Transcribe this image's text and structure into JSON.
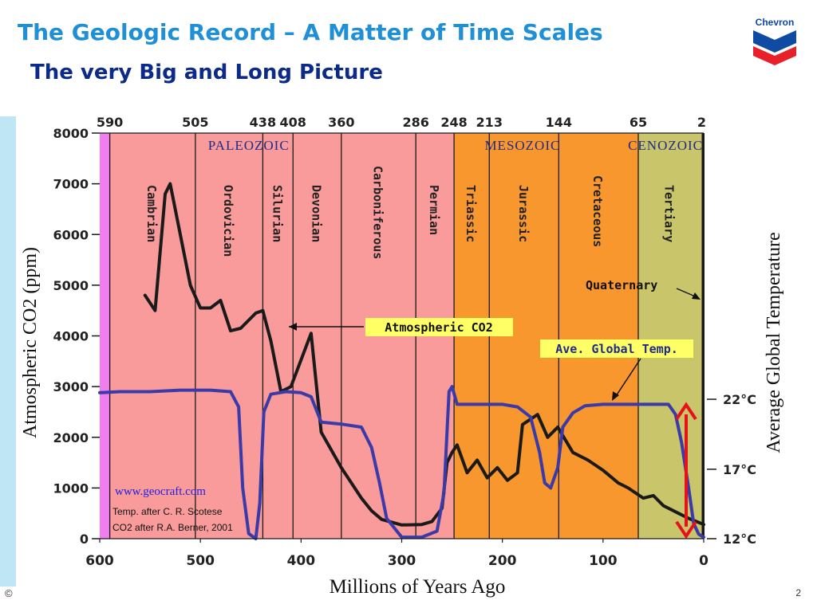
{
  "slide": {
    "title": "The Geologic Record – A Matter of Time Scales",
    "subtitle": "The very Big and Long Picture",
    "copyright": "©",
    "page_number": "2",
    "logo_text": "Chevron"
  },
  "chart_data": {
    "type": "line",
    "xlabel": "Millions of Years Ago",
    "ylabel": "Atmospheric CO2 (ppm)",
    "y2label": "Average Global Temperature",
    "xlim": [
      600,
      0
    ],
    "ylim": [
      0,
      8000
    ],
    "x_ticks": [
      600,
      500,
      400,
      300,
      200,
      100,
      0
    ],
    "y_ticks": [
      0,
      1000,
      2000,
      3000,
      4000,
      5000,
      6000,
      7000,
      8000
    ],
    "top_ticks": [
      "590",
      "505",
      "438",
      "408",
      "360",
      "286",
      "248",
      "213",
      "144",
      "65",
      "2"
    ],
    "temp_ticks": [
      {
        "label": "22°C",
        "ppm": 2750
      },
      {
        "label": "17°C",
        "ppm": 1370
      },
      {
        "label": "12°C",
        "ppm": 0
      }
    ],
    "periods": [
      {
        "name": "",
        "start": 600,
        "end": 590,
        "color": "#f07ef0"
      },
      {
        "name": "Cambrian",
        "start": 590,
        "end": 505,
        "color": "#f99b9b"
      },
      {
        "name": "Ordovician",
        "start": 505,
        "end": 438,
        "color": "#f99b9b"
      },
      {
        "name": "Silurian",
        "start": 438,
        "end": 408,
        "color": "#f99b9b"
      },
      {
        "name": "Devonian",
        "start": 408,
        "end": 360,
        "color": "#f99b9b"
      },
      {
        "name": "Carboniferous",
        "start": 360,
        "end": 286,
        "color": "#f99b9b"
      },
      {
        "name": "Permian",
        "start": 286,
        "end": 248,
        "color": "#f99b9b"
      },
      {
        "name": "Triassic",
        "start": 248,
        "end": 213,
        "color": "#f9972f"
      },
      {
        "name": "Jurassic",
        "start": 213,
        "end": 144,
        "color": "#f9972f"
      },
      {
        "name": "Cretaceous",
        "start": 144,
        "end": 65,
        "color": "#f9972f"
      },
      {
        "name": "Tertiary",
        "start": 65,
        "end": 2,
        "color": "#c9c56a"
      }
    ],
    "eras": [
      {
        "name": "PALEOZOIC",
        "x": 452
      },
      {
        "name": "MESOZOIC",
        "x": 180
      },
      {
        "name": "CENOZOIC",
        "x": 38
      }
    ],
    "series": [
      {
        "name": "Atmospheric CO2",
        "color": "#1a1a1a",
        "points": [
          [
            555,
            4800
          ],
          [
            545,
            4500
          ],
          [
            535,
            6800
          ],
          [
            530,
            7000
          ],
          [
            510,
            5000
          ],
          [
            500,
            4550
          ],
          [
            490,
            4550
          ],
          [
            480,
            4700
          ],
          [
            470,
            4100
          ],
          [
            460,
            4150
          ],
          [
            445,
            4450
          ],
          [
            438,
            4500
          ],
          [
            430,
            3900
          ],
          [
            420,
            2900
          ],
          [
            410,
            3000
          ],
          [
            390,
            4050
          ],
          [
            380,
            2100
          ],
          [
            360,
            1400
          ],
          [
            340,
            800
          ],
          [
            330,
            550
          ],
          [
            320,
            380
          ],
          [
            300,
            270
          ],
          [
            280,
            280
          ],
          [
            270,
            340
          ],
          [
            260,
            600
          ],
          [
            255,
            1500
          ],
          [
            250,
            1700
          ],
          [
            245,
            1850
          ],
          [
            235,
            1300
          ],
          [
            225,
            1550
          ],
          [
            215,
            1200
          ],
          [
            205,
            1400
          ],
          [
            195,
            1150
          ],
          [
            185,
            1300
          ],
          [
            180,
            2250
          ],
          [
            165,
            2450
          ],
          [
            155,
            2000
          ],
          [
            145,
            2200
          ],
          [
            130,
            1700
          ],
          [
            115,
            1550
          ],
          [
            100,
            1350
          ],
          [
            85,
            1100
          ],
          [
            75,
            1000
          ],
          [
            60,
            800
          ],
          [
            50,
            850
          ],
          [
            40,
            650
          ],
          [
            25,
            500
          ],
          [
            15,
            400
          ],
          [
            5,
            320
          ],
          [
            0,
            280
          ]
        ]
      },
      {
        "name": "Ave. Global Temp.",
        "color": "#3a3aa8",
        "points": [
          [
            600,
            2880
          ],
          [
            580,
            2900
          ],
          [
            550,
            2900
          ],
          [
            520,
            2930
          ],
          [
            490,
            2930
          ],
          [
            470,
            2900
          ],
          [
            462,
            2600
          ],
          [
            458,
            1000
          ],
          [
            452,
            100
          ],
          [
            445,
            0
          ],
          [
            441,
            700
          ],
          [
            437,
            2500
          ],
          [
            430,
            2850
          ],
          [
            415,
            2900
          ],
          [
            400,
            2880
          ],
          [
            390,
            2800
          ],
          [
            380,
            2300
          ],
          [
            360,
            2260
          ],
          [
            340,
            2200
          ],
          [
            330,
            1800
          ],
          [
            322,
            1100
          ],
          [
            315,
            400
          ],
          [
            300,
            30
          ],
          [
            280,
            30
          ],
          [
            265,
            150
          ],
          [
            258,
            900
          ],
          [
            253,
            2900
          ],
          [
            250,
            3000
          ],
          [
            245,
            2650
          ],
          [
            230,
            2650
          ],
          [
            200,
            2650
          ],
          [
            185,
            2600
          ],
          [
            172,
            2400
          ],
          [
            163,
            1700
          ],
          [
            158,
            1100
          ],
          [
            152,
            1000
          ],
          [
            145,
            1400
          ],
          [
            140,
            2200
          ],
          [
            130,
            2480
          ],
          [
            118,
            2620
          ],
          [
            100,
            2650
          ],
          [
            80,
            2650
          ],
          [
            50,
            2650
          ],
          [
            35,
            2650
          ],
          [
            28,
            2450
          ],
          [
            22,
            1900
          ],
          [
            15,
            1000
          ],
          [
            10,
            300
          ],
          [
            5,
            90
          ],
          [
            0,
            30
          ]
        ]
      }
    ],
    "annotations": [
      {
        "text": "Atmospheric CO2"
      },
      {
        "text": "Ave. Global Temp."
      },
      {
        "text": "Quaternary"
      },
      {
        "text": "www.geocraft.com"
      },
      {
        "text": "Temp. after C. R. Scotese"
      },
      {
        "text": "CO2 after R.A. Berner, 2001"
      }
    ]
  }
}
